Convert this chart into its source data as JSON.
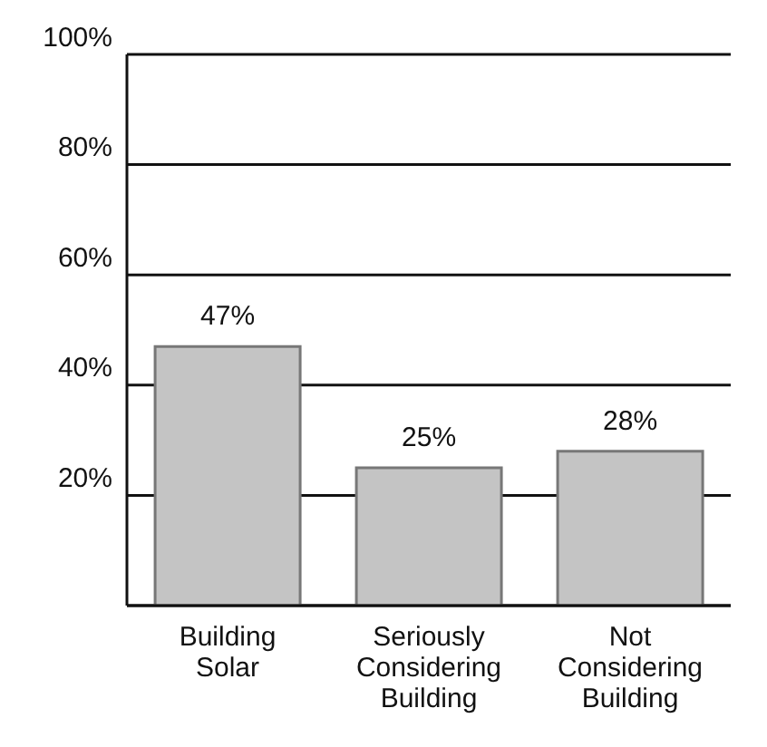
{
  "chart_data": {
    "type": "bar",
    "categories": [
      "Building Solar",
      "Seriously Considering Building",
      "Not Considering Building"
    ],
    "values": [
      47,
      25,
      28
    ],
    "color": "#c4c4c4",
    "value_labels": [
      "47%",
      "25%",
      "28%"
    ],
    "ylim": [
      0,
      100
    ],
    "yticks": [
      {
        "value": 20,
        "label": "20%"
      },
      {
        "value": 40,
        "label": "40%"
      },
      {
        "value": 60,
        "label": "60%"
      },
      {
        "value": 80,
        "label": "80%"
      },
      {
        "value": 100,
        "label": "100%"
      }
    ],
    "grid": "y"
  }
}
